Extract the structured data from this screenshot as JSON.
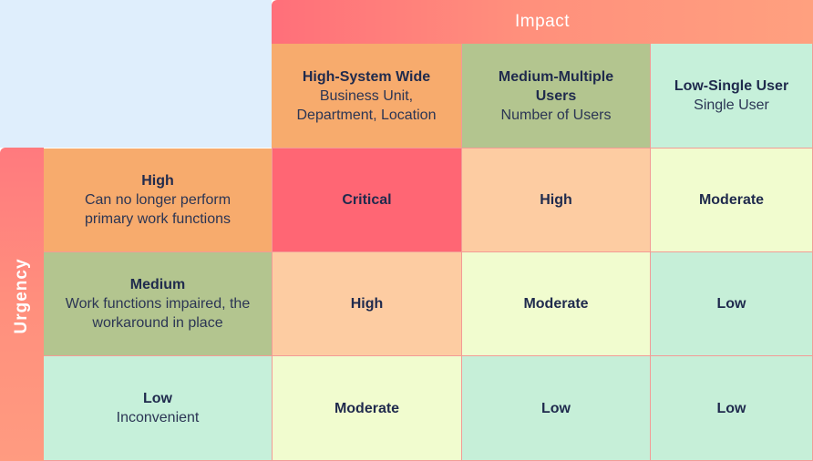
{
  "impact": {
    "label": "Impact",
    "columns": [
      {
        "title": "High-System Wide",
        "subtitle": "Business Unit, Department, Location"
      },
      {
        "title": "Medium-Multiple Users",
        "subtitle": "Number of Users"
      },
      {
        "title": "Low-Single User",
        "subtitle": "Single User"
      }
    ]
  },
  "urgency": {
    "label": "Urgency",
    "rows": [
      {
        "title": "High",
        "subtitle": "Can no longer perform primary work functions",
        "cells": [
          "Critical",
          "High",
          "Moderate"
        ]
      },
      {
        "title": "Medium",
        "subtitle": "Work functions impaired, the workaround in place",
        "cells": [
          "High",
          "Moderate",
          "Low"
        ]
      },
      {
        "title": "Low",
        "subtitle": "Inconvenient",
        "cells": [
          "Moderate",
          "Low",
          "Low"
        ]
      }
    ]
  },
  "colors": {
    "critical": "#ff6674",
    "high": "#fdcca2",
    "moderate": "#f1fccf",
    "low": "#c6efd8"
  }
}
